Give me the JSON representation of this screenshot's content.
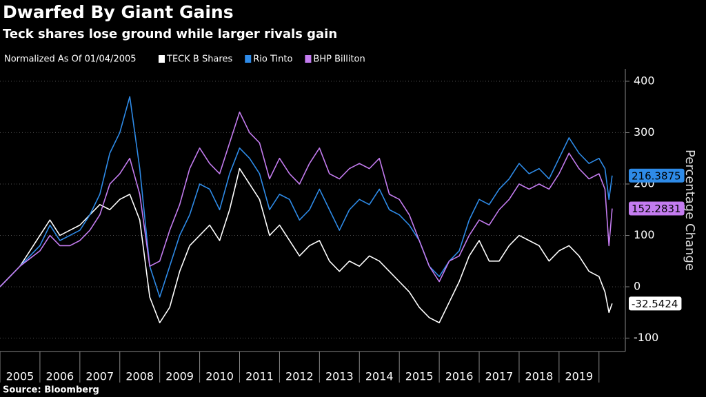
{
  "chart_data": {
    "type": "line",
    "title": "Dwarfed By Giant Gains",
    "subtitle": "Teck shares lose ground while larger rivals gain",
    "legend_title": "Normalized As Of 01/04/2005",
    "y_label": "Percentage Change",
    "source": "Source: Bloomberg",
    "x": [
      2005,
      2005.25,
      2005.5,
      2005.75,
      2006,
      2006.25,
      2006.5,
      2006.75,
      2007,
      2007.25,
      2007.5,
      2007.75,
      2008,
      2008.25,
      2008.5,
      2008.75,
      2009,
      2009.25,
      2009.5,
      2009.75,
      2010,
      2010.25,
      2010.5,
      2010.75,
      2011,
      2011.25,
      2011.5,
      2011.75,
      2012,
      2012.25,
      2012.5,
      2012.75,
      2013,
      2013.25,
      2013.5,
      2013.75,
      2014,
      2014.25,
      2014.5,
      2014.75,
      2015,
      2015.25,
      2015.5,
      2015.75,
      2016,
      2016.25,
      2016.5,
      2016.75,
      2017,
      2017.25,
      2017.5,
      2017.75,
      2018,
      2018.25,
      2018.5,
      2018.75,
      2019,
      2019.25,
      2019.5,
      2019.75,
      2020,
      2020.15,
      2020.25,
      2020.33
    ],
    "series": [
      {
        "name": "TECK B Shares",
        "color": "#ffffff",
        "values": [
          0,
          20,
          40,
          70,
          100,
          130,
          100,
          110,
          120,
          140,
          160,
          150,
          170,
          180,
          130,
          -20,
          -70,
          -40,
          30,
          80,
          100,
          120,
          90,
          150,
          230,
          200,
          170,
          100,
          120,
          90,
          60,
          80,
          90,
          50,
          30,
          50,
          40,
          60,
          50,
          30,
          10,
          -10,
          -40,
          -60,
          -70,
          -30,
          10,
          60,
          90,
          50,
          50,
          80,
          100,
          90,
          80,
          50,
          70,
          80,
          60,
          30,
          20,
          -10,
          -50,
          -32.5424
        ]
      },
      {
        "name": "Rio Tinto",
        "color": "#2e8be8",
        "values": [
          0,
          20,
          40,
          60,
          80,
          120,
          90,
          100,
          110,
          140,
          180,
          260,
          300,
          370,
          230,
          40,
          -20,
          40,
          100,
          140,
          200,
          190,
          150,
          220,
          270,
          250,
          220,
          150,
          180,
          170,
          130,
          150,
          190,
          150,
          110,
          150,
          170,
          160,
          190,
          150,
          140,
          120,
          90,
          40,
          20,
          50,
          70,
          130,
          170,
          160,
          190,
          210,
          240,
          220,
          230,
          210,
          250,
          290,
          260,
          240,
          250,
          230,
          170,
          216.3875
        ]
      },
      {
        "name": "BHP Billiton",
        "color": "#c47cf0",
        "values": [
          0,
          20,
          40,
          55,
          70,
          100,
          80,
          80,
          90,
          110,
          140,
          200,
          220,
          250,
          180,
          40,
          50,
          110,
          160,
          230,
          270,
          240,
          220,
          280,
          340,
          300,
          280,
          210,
          250,
          220,
          200,
          240,
          270,
          220,
          210,
          230,
          240,
          230,
          250,
          180,
          170,
          140,
          90,
          40,
          10,
          50,
          60,
          100,
          130,
          120,
          150,
          170,
          200,
          190,
          200,
          190,
          220,
          260,
          230,
          210,
          220,
          190,
          80,
          152.2831
        ]
      }
    ],
    "xlim": [
      2005,
      2020.66
    ],
    "xticks": [
      {
        "value": 2005.5,
        "label": "2005"
      },
      {
        "value": 2006.5,
        "label": "2006"
      },
      {
        "value": 2007.5,
        "label": "2007"
      },
      {
        "value": 2008.5,
        "label": "2008"
      },
      {
        "value": 2009.5,
        "label": "2009"
      },
      {
        "value": 2010.5,
        "label": "2010"
      },
      {
        "value": 2011.5,
        "label": "2011"
      },
      {
        "value": 2012.5,
        "label": "2012"
      },
      {
        "value": 2013.5,
        "label": "2013"
      },
      {
        "value": 2014.5,
        "label": "2014"
      },
      {
        "value": 2015.5,
        "label": "2015"
      },
      {
        "value": 2016.5,
        "label": "2016"
      },
      {
        "value": 2017.5,
        "label": "2017"
      },
      {
        "value": 2018.5,
        "label": "2018"
      },
      {
        "value": 2019.5,
        "label": "2019"
      }
    ],
    "ylim": [
      -126,
      424
    ],
    "yticks": [
      400,
      300,
      200,
      100,
      0,
      -100
    ],
    "grid": true
  }
}
